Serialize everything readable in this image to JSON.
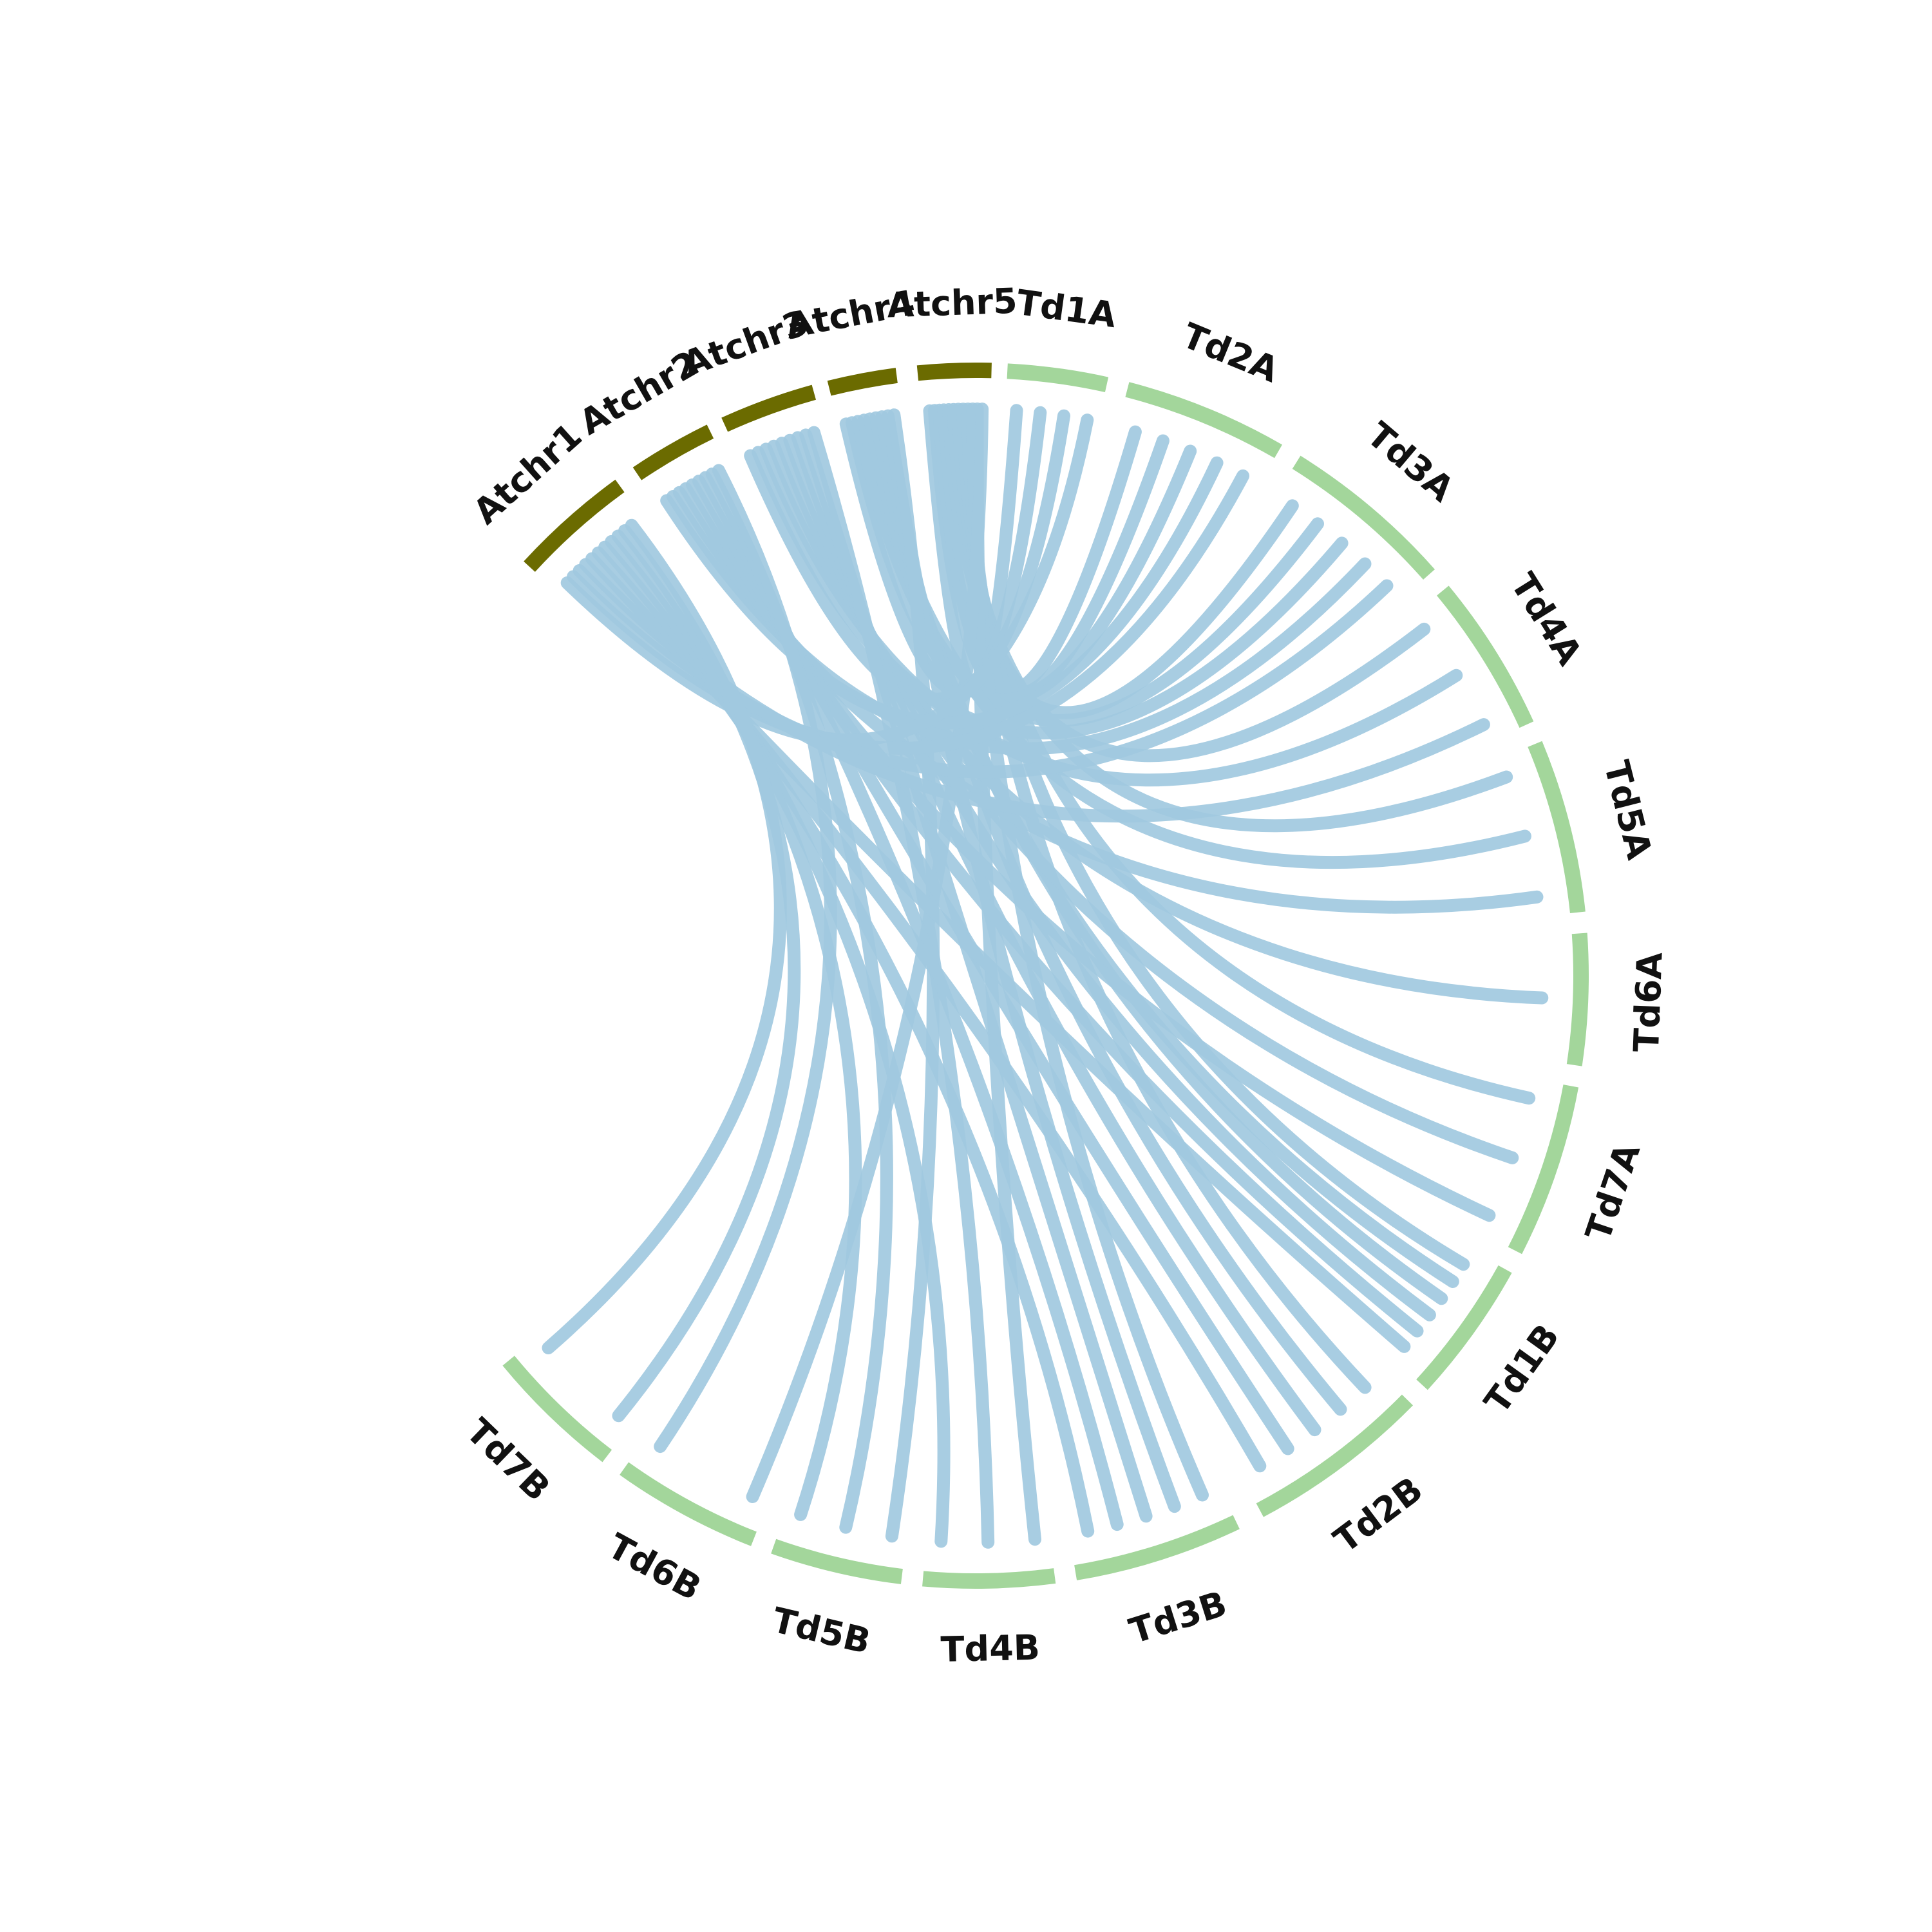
{
  "diagram": {
    "type": "circos",
    "segments": [
      {
        "id": "Atchr1",
        "label": "Atchr1",
        "group": "query"
      },
      {
        "id": "Atchr2",
        "label": "Atchr2",
        "group": "query"
      },
      {
        "id": "Atchr3",
        "label": "Atchr3",
        "group": "query"
      },
      {
        "id": "Atchr4",
        "label": "Atchr4",
        "group": "query"
      },
      {
        "id": "Atchr5",
        "label": "Atchr5",
        "group": "query"
      },
      {
        "id": "Td1A",
        "label": "Td1A",
        "group": "target"
      },
      {
        "id": "Td2A",
        "label": "Td2A",
        "group": "target"
      },
      {
        "id": "Td3A",
        "label": "Td3A",
        "group": "target"
      },
      {
        "id": "Td4A",
        "label": "Td4A",
        "group": "target"
      },
      {
        "id": "Td5A",
        "label": "Td5A",
        "group": "target"
      },
      {
        "id": "Td6A",
        "label": "Td6A",
        "group": "target"
      },
      {
        "id": "Td7A",
        "label": "Td7A",
        "group": "target"
      },
      {
        "id": "Td1B",
        "label": "Td1B",
        "group": "target"
      },
      {
        "id": "Td2B",
        "label": "Td2B",
        "group": "target"
      },
      {
        "id": "Td3B",
        "label": "Td3B",
        "group": "target"
      },
      {
        "id": "Td4B",
        "label": "Td4B",
        "group": "target"
      },
      {
        "id": "Td5B",
        "label": "Td5B",
        "group": "target"
      },
      {
        "id": "Td6B",
        "label": "Td6B",
        "group": "target"
      },
      {
        "id": "Td7B",
        "label": "Td7B",
        "group": "target"
      }
    ],
    "links": [
      {
        "from": "Atchr5",
        "to": "Td1A"
      },
      {
        "from": "Atchr5",
        "to": "Td2A"
      },
      {
        "from": "Atchr5",
        "to": "Td2A"
      },
      {
        "from": "Atchr5",
        "to": "Td3A"
      },
      {
        "from": "Atchr5",
        "to": "Td4A"
      },
      {
        "from": "Atchr5",
        "to": "Td5A"
      },
      {
        "from": "Atchr5",
        "to": "Td7A"
      },
      {
        "from": "Atchr5",
        "to": "Td1B"
      },
      {
        "from": "Atchr5",
        "to": "Td2B"
      },
      {
        "from": "Atchr5",
        "to": "Td3B"
      },
      {
        "from": "Atchr5",
        "to": "Td4B"
      },
      {
        "from": "Atchr5",
        "to": "Td6B"
      },
      {
        "from": "Atchr4",
        "to": "Td1A"
      },
      {
        "from": "Atchr4",
        "to": "Td2A"
      },
      {
        "from": "Atchr4",
        "to": "Td3A"
      },
      {
        "from": "Atchr4",
        "to": "Td5A"
      },
      {
        "from": "Atchr4",
        "to": "Td1B"
      },
      {
        "from": "Atchr4",
        "to": "Td1B"
      },
      {
        "from": "Atchr4",
        "to": "Td2B"
      },
      {
        "from": "Atchr4",
        "to": "Td3B"
      },
      {
        "from": "Atchr4",
        "to": "Td5B"
      },
      {
        "from": "Atchr3",
        "to": "Td1A"
      },
      {
        "from": "Atchr3",
        "to": "Td3A"
      },
      {
        "from": "Atchr3",
        "to": "Td4A"
      },
      {
        "from": "Atchr3",
        "to": "Td6A"
      },
      {
        "from": "Atchr3",
        "to": "Td7A"
      },
      {
        "from": "Atchr3",
        "to": "Td1B"
      },
      {
        "from": "Atchr3",
        "to": "Td2B"
      },
      {
        "from": "Atchr3",
        "to": "Td3B"
      },
      {
        "from": "Atchr3",
        "to": "Td4B"
      },
      {
        "from": "Atchr2",
        "to": "Td2A"
      },
      {
        "from": "Atchr2",
        "to": "Td3A"
      },
      {
        "from": "Atchr2",
        "to": "Td5A"
      },
      {
        "from": "Atchr2",
        "to": "Td7A"
      },
      {
        "from": "Atchr2",
        "to": "Td1B"
      },
      {
        "from": "Atchr2",
        "to": "Td2B"
      },
      {
        "from": "Atchr2",
        "to": "Td3B"
      },
      {
        "from": "Atchr2",
        "to": "Td5B"
      },
      {
        "from": "Atchr2",
        "to": "Td6B"
      },
      {
        "from": "Atchr1",
        "to": "Td1A"
      },
      {
        "from": "Atchr1",
        "to": "Td2A"
      },
      {
        "from": "Atchr1",
        "to": "Td3A"
      },
      {
        "from": "Atchr1",
        "to": "Td4A"
      },
      {
        "from": "Atchr1",
        "to": "Td1B"
      },
      {
        "from": "Atchr1",
        "to": "Td2B"
      },
      {
        "from": "Atchr1",
        "to": "Td3B"
      },
      {
        "from": "Atchr1",
        "to": "Td4B"
      },
      {
        "from": "Atchr1",
        "to": "Td5B"
      },
      {
        "from": "Atchr1",
        "to": "Td7B"
      },
      {
        "from": "Atchr1",
        "to": "Td7B"
      }
    ],
    "colors": {
      "query_segment": "#6b6b00",
      "target_segment": "#a3d69b",
      "link": "#a1c9e0",
      "label": "#111111"
    }
  }
}
